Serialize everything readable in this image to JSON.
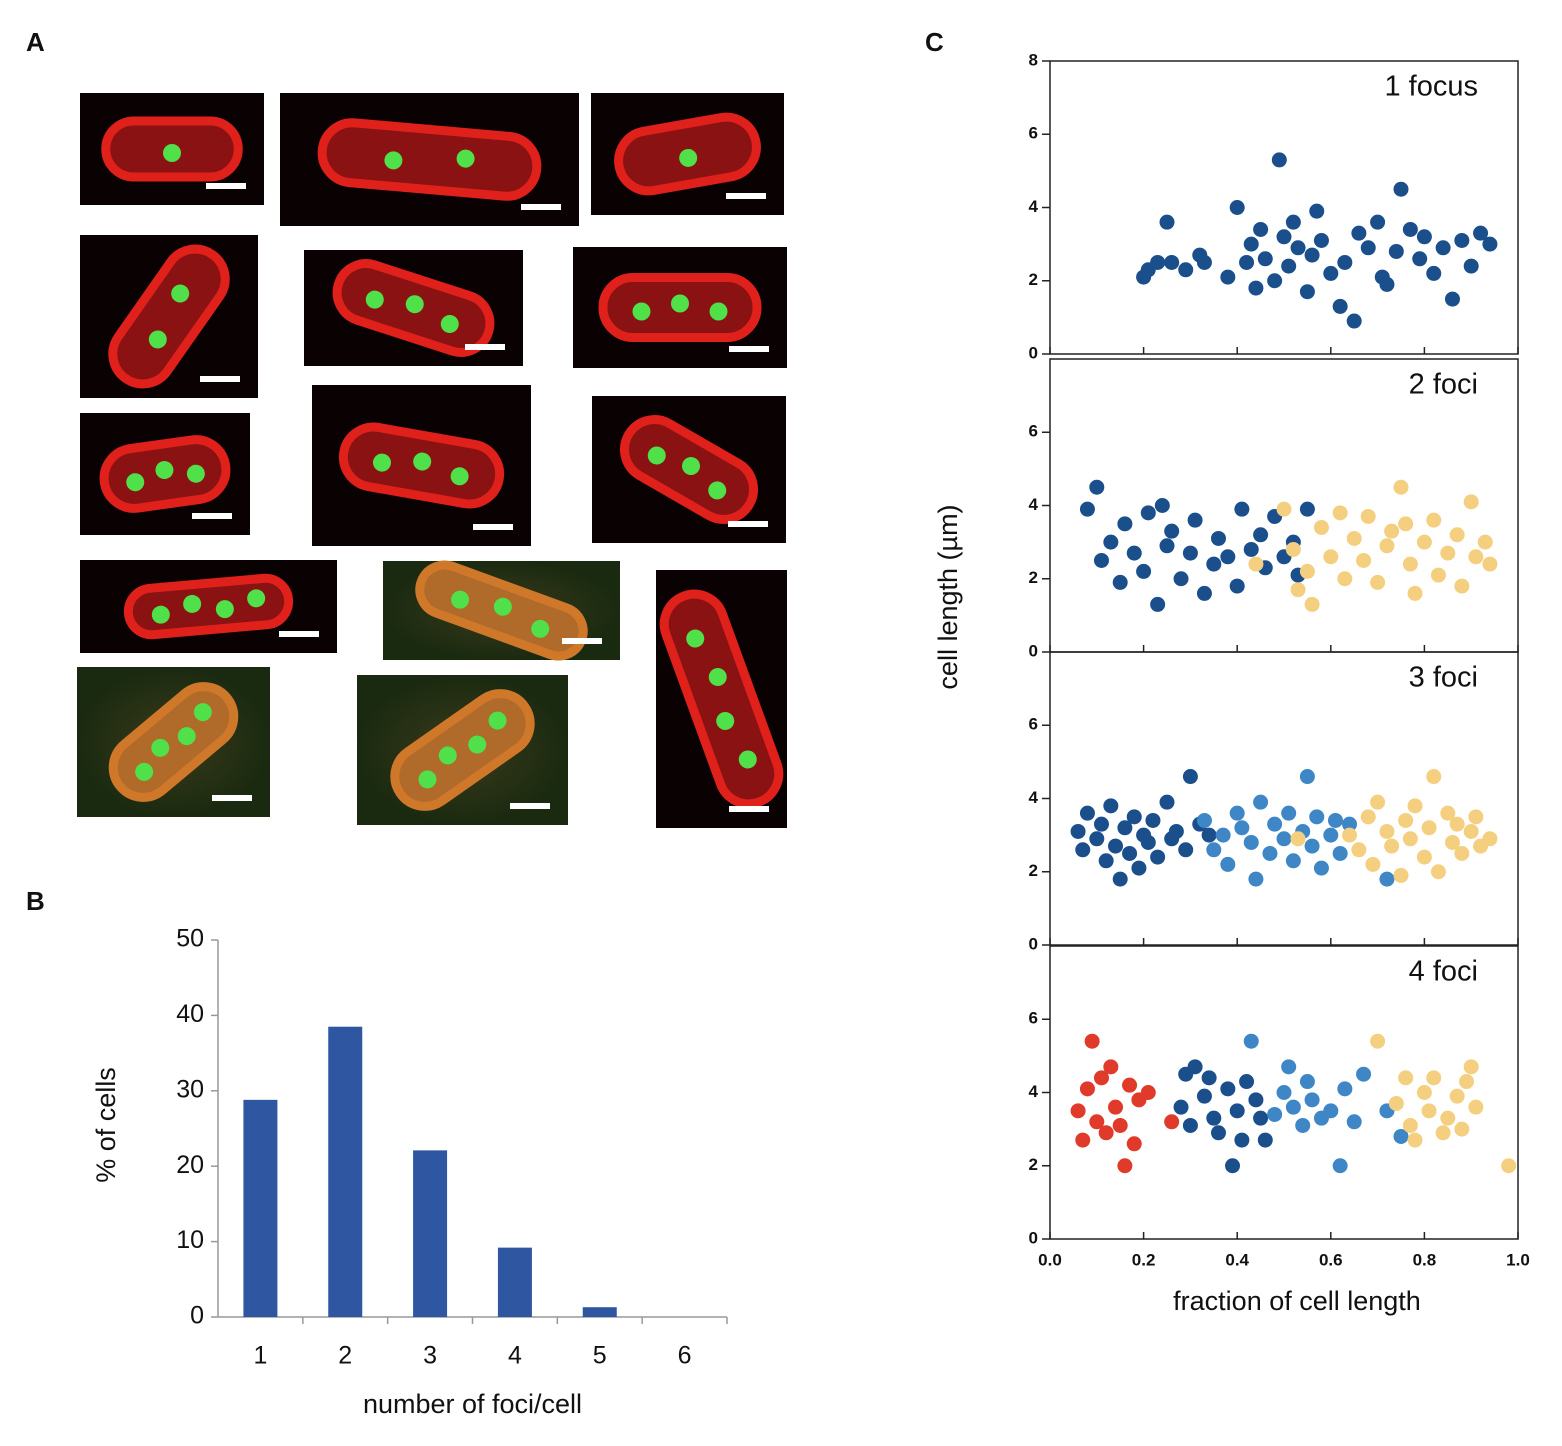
{
  "panel_labels": [
    "A",
    "B",
    "C"
  ],
  "chart_data": [
    {
      "type": "bar",
      "categories": [
        "1",
        "2",
        "3",
        "4",
        "5",
        "6"
      ],
      "values": [
        28.8,
        38.5,
        22.1,
        9.2,
        1.3,
        0
      ],
      "color": "#2f56a0",
      "ylim": [
        0,
        50
      ],
      "yticks": [
        0,
        10,
        20,
        30,
        40,
        50
      ],
      "xlabel": "number of foci/cell",
      "ylabel": "% of cells"
    },
    {
      "type": "scatter",
      "annotation": "1 focus",
      "ylabel": "cell length (µm)",
      "xlim": [
        0,
        1
      ],
      "ylim": [
        0,
        8
      ],
      "yticks": [
        0,
        2,
        4,
        6,
        8
      ],
      "series": [
        {
          "color": "#1a4f8c",
          "x": [
            0.2,
            0.21,
            0.23,
            0.25,
            0.26,
            0.29,
            0.32,
            0.33,
            0.38,
            0.4,
            0.42,
            0.43,
            0.44,
            0.45,
            0.46,
            0.48,
            0.49,
            0.5,
            0.51,
            0.52,
            0.53,
            0.55,
            0.56,
            0.57,
            0.58,
            0.6,
            0.62,
            0.63,
            0.65,
            0.66,
            0.68,
            0.7,
            0.71,
            0.72,
            0.74,
            0.75,
            0.77,
            0.79,
            0.8,
            0.82,
            0.84,
            0.86,
            0.88,
            0.9,
            0.92,
            0.94
          ],
          "values": [
            2.1,
            2.3,
            2.5,
            3.6,
            2.5,
            2.3,
            2.7,
            2.5,
            2.1,
            4.0,
            2.5,
            3.0,
            1.8,
            3.4,
            2.6,
            2.0,
            5.3,
            3.2,
            2.4,
            3.6,
            2.9,
            1.7,
            2.7,
            3.9,
            3.1,
            2.2,
            1.3,
            2.5,
            0.9,
            3.3,
            2.9,
            3.6,
            2.1,
            1.9,
            2.8,
            4.5,
            3.4,
            2.6,
            3.2,
            2.2,
            2.9,
            1.5,
            3.1,
            2.4,
            3.3,
            3.0
          ]
        }
      ]
    },
    {
      "type": "scatter",
      "annotation": "2 foci",
      "xlim": [
        0,
        1
      ],
      "ylim": [
        0,
        8
      ],
      "yticks": [
        0,
        2,
        4,
        6
      ],
      "series": [
        {
          "color": "#1a4f8c",
          "x": [
            0.08,
            0.1,
            0.11,
            0.13,
            0.15,
            0.16,
            0.18,
            0.2,
            0.21,
            0.23,
            0.25,
            0.26,
            0.28,
            0.3,
            0.31,
            0.33,
            0.35,
            0.36,
            0.38,
            0.4,
            0.41,
            0.43,
            0.45,
            0.46,
            0.48,
            0.5,
            0.52,
            0.53,
            0.55,
            0.24
          ],
          "values": [
            3.9,
            4.5,
            2.5,
            3.0,
            1.9,
            3.5,
            2.7,
            2.2,
            3.8,
            1.3,
            2.9,
            3.3,
            2.0,
            2.7,
            3.6,
            1.6,
            2.4,
            3.1,
            2.6,
            1.8,
            3.9,
            2.8,
            3.2,
            2.3,
            3.7,
            2.6,
            3.0,
            2.1,
            3.9,
            4.0
          ]
        },
        {
          "color": "#f5cf80",
          "x": [
            0.5,
            0.52,
            0.55,
            0.56,
            0.58,
            0.6,
            0.62,
            0.63,
            0.65,
            0.67,
            0.68,
            0.7,
            0.72,
            0.73,
            0.75,
            0.77,
            0.78,
            0.8,
            0.82,
            0.83,
            0.85,
            0.87,
            0.88,
            0.9,
            0.91,
            0.93,
            0.94,
            0.76,
            0.44,
            0.53
          ],
          "values": [
            3.9,
            2.8,
            2.2,
            1.3,
            3.4,
            2.6,
            3.8,
            2.0,
            3.1,
            2.5,
            3.7,
            1.9,
            2.9,
            3.3,
            4.5,
            2.4,
            1.6,
            3.0,
            3.6,
            2.1,
            2.7,
            3.2,
            1.8,
            4.1,
            2.6,
            3.0,
            2.4,
            3.5,
            2.4,
            1.7
          ]
        }
      ]
    },
    {
      "type": "scatter",
      "annotation": "3 foci",
      "xlim": [
        0,
        1
      ],
      "ylim": [
        0,
        8
      ],
      "yticks": [
        0,
        2,
        4,
        6
      ],
      "series": [
        {
          "color": "#1a4f8c",
          "x": [
            0.06,
            0.07,
            0.08,
            0.1,
            0.11,
            0.12,
            0.13,
            0.14,
            0.15,
            0.16,
            0.17,
            0.18,
            0.19,
            0.2,
            0.21,
            0.22,
            0.23,
            0.25,
            0.26,
            0.27,
            0.29,
            0.3,
            0.32,
            0.34
          ],
          "values": [
            3.1,
            2.6,
            3.6,
            2.9,
            3.3,
            2.3,
            3.8,
            2.7,
            1.8,
            3.2,
            2.5,
            3.5,
            2.1,
            3.0,
            2.8,
            3.4,
            2.4,
            3.9,
            2.9,
            3.1,
            2.6,
            4.6,
            3.3,
            3.0
          ]
        },
        {
          "color": "#3f86c6",
          "x": [
            0.33,
            0.35,
            0.37,
            0.38,
            0.4,
            0.41,
            0.43,
            0.44,
            0.45,
            0.47,
            0.48,
            0.5,
            0.51,
            0.52,
            0.54,
            0.55,
            0.56,
            0.57,
            0.58,
            0.6,
            0.61,
            0.62,
            0.64,
            0.72
          ],
          "values": [
            3.4,
            2.6,
            3.0,
            2.2,
            3.6,
            3.2,
            2.8,
            1.8,
            3.9,
            2.5,
            3.3,
            2.9,
            3.6,
            2.3,
            3.1,
            4.6,
            2.7,
            3.5,
            2.1,
            3.0,
            3.4,
            2.5,
            3.3,
            1.8
          ]
        },
        {
          "color": "#f5cf80",
          "x": [
            0.64,
            0.66,
            0.68,
            0.69,
            0.7,
            0.72,
            0.73,
            0.75,
            0.76,
            0.77,
            0.78,
            0.8,
            0.81,
            0.82,
            0.83,
            0.85,
            0.86,
            0.87,
            0.88,
            0.9,
            0.91,
            0.92,
            0.94,
            0.53
          ],
          "values": [
            3.0,
            2.6,
            3.5,
            2.2,
            3.9,
            3.1,
            2.7,
            1.9,
            3.4,
            2.9,
            3.8,
            2.4,
            3.2,
            4.6,
            2.0,
            3.6,
            2.8,
            3.3,
            2.5,
            3.1,
            3.5,
            2.7,
            2.9,
            2.9
          ]
        }
      ]
    },
    {
      "type": "scatter",
      "annotation": "4 foci",
      "xlabel": "fraction of cell length",
      "xlim": [
        0,
        1
      ],
      "ylim": [
        0,
        8
      ],
      "yticks": [
        0,
        2,
        4,
        6
      ],
      "xticks": [
        {
          "value": 0,
          "label": "0.0"
        },
        0.2,
        0.4,
        0.6,
        0.8,
        {
          "value": 1,
          "label": "1.0"
        }
      ],
      "series": [
        {
          "color": "#e03a2a",
          "x": [
            0.06,
            0.07,
            0.08,
            0.09,
            0.1,
            0.11,
            0.12,
            0.13,
            0.14,
            0.15,
            0.16,
            0.17,
            0.18,
            0.19,
            0.21,
            0.26
          ],
          "values": [
            3.5,
            2.7,
            4.1,
            5.4,
            3.2,
            4.4,
            2.9,
            4.7,
            3.6,
            3.1,
            2.0,
            4.2,
            2.6,
            3.8,
            4.0,
            3.2
          ]
        },
        {
          "color": "#1a4f8c",
          "x": [
            0.28,
            0.29,
            0.3,
            0.31,
            0.33,
            0.34,
            0.35,
            0.36,
            0.38,
            0.39,
            0.4,
            0.41,
            0.42,
            0.44,
            0.45,
            0.46
          ],
          "values": [
            3.6,
            4.5,
            3.1,
            4.7,
            3.9,
            4.4,
            3.3,
            2.9,
            4.1,
            2.0,
            3.5,
            2.7,
            4.3,
            3.8,
            3.3,
            2.7
          ]
        },
        {
          "color": "#3f86c6",
          "x": [
            0.43,
            0.48,
            0.5,
            0.51,
            0.52,
            0.54,
            0.55,
            0.56,
            0.58,
            0.6,
            0.62,
            0.63,
            0.65,
            0.67,
            0.72,
            0.75
          ],
          "values": [
            5.4,
            3.4,
            4.0,
            4.7,
            3.6,
            3.1,
            4.3,
            3.8,
            3.3,
            3.5,
            2.0,
            4.1,
            3.2,
            4.5,
            3.5,
            2.8
          ]
        },
        {
          "color": "#f5cf80",
          "x": [
            0.7,
            0.74,
            0.76,
            0.77,
            0.78,
            0.8,
            0.81,
            0.82,
            0.84,
            0.85,
            0.87,
            0.88,
            0.89,
            0.9,
            0.91,
            0.98
          ],
          "values": [
            5.4,
            3.7,
            4.4,
            3.1,
            2.7,
            4.0,
            3.5,
            4.4,
            2.9,
            3.3,
            3.9,
            3.0,
            4.3,
            4.7,
            3.6,
            2.0
          ]
        }
      ]
    }
  ]
}
